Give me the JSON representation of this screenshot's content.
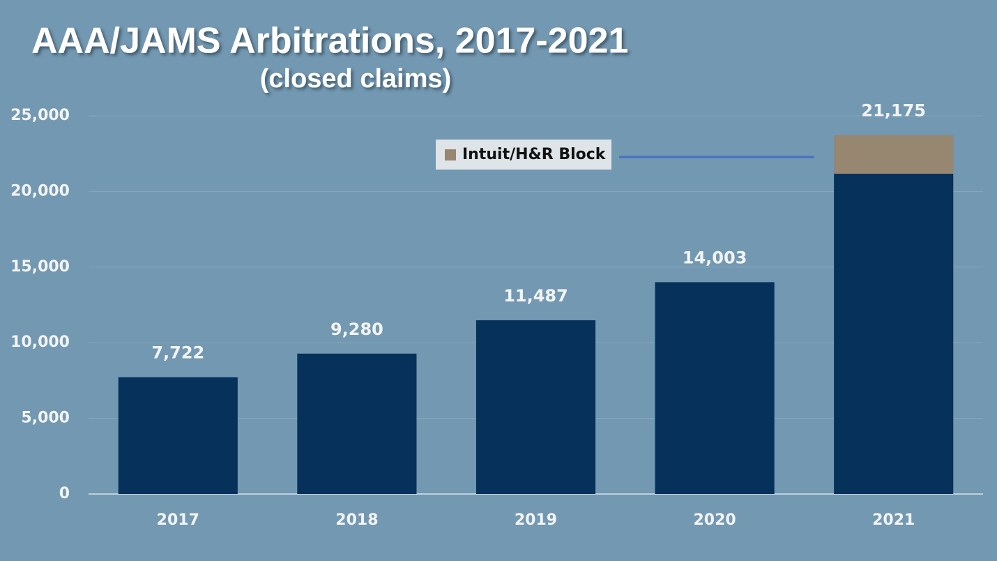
{
  "chart_data": {
    "type": "stacked_bar",
    "title": "AAA/JAMS Arbitrations, 2017-2021",
    "subtitle": "(closed claims)",
    "categories": [
      "2017",
      "2018",
      "2019",
      "2020",
      "2021"
    ],
    "series": [
      {
        "color": "#05315a",
        "values": [
          7722,
          9280,
          11487,
          14003,
          21175
        ],
        "value_labels": [
          "7,722",
          "9,280",
          "11,487",
          "14,003",
          "21,175"
        ]
      },
      {
        "name": "Intuit/H&R Block",
        "color": "#978670",
        "values": [
          null,
          null,
          null,
          null,
          2550
        ]
      }
    ],
    "ylim": [
      0,
      25000
    ],
    "yticks": [
      0,
      {
        "value": 5000,
        "label": "5,000"
      },
      {
        "value": 10000,
        "label": "10,000"
      },
      {
        "value": 15000,
        "label": "15,000"
      },
      {
        "value": 20000,
        "label": "20,000"
      },
      {
        "value": 25000,
        "label": "25,000"
      }
    ],
    "grid": true,
    "legend": "top"
  }
}
